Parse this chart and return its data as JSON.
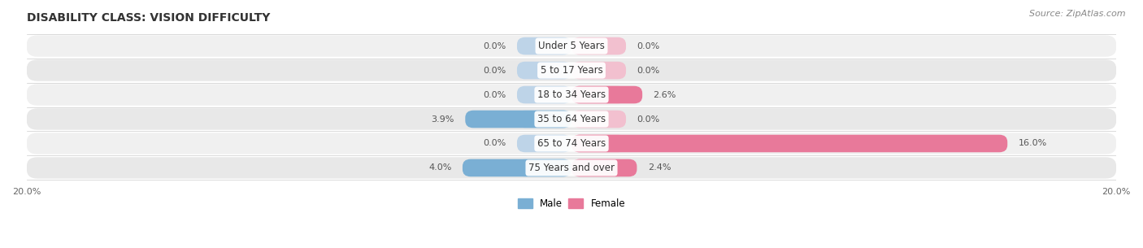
{
  "title": "DISABILITY CLASS: VISION DIFFICULTY",
  "source": "Source: ZipAtlas.com",
  "categories": [
    "Under 5 Years",
    "5 to 17 Years",
    "18 to 34 Years",
    "35 to 64 Years",
    "65 to 74 Years",
    "75 Years and over"
  ],
  "male_values": [
    0.0,
    0.0,
    0.0,
    3.9,
    0.0,
    4.0
  ],
  "female_values": [
    0.0,
    0.0,
    2.6,
    0.0,
    16.0,
    2.4
  ],
  "male_color": "#7aafd4",
  "female_color": "#e8799a",
  "male_color_light": "#bed4e8",
  "female_color_light": "#f2c0cf",
  "row_bg_even": "#f0f0f0",
  "row_bg_odd": "#e8e8e8",
  "xlim": 20.0,
  "stub_size": 2.0,
  "title_fontsize": 10,
  "label_fontsize": 8,
  "cat_fontsize": 8.5,
  "tick_fontsize": 8,
  "source_fontsize": 8
}
